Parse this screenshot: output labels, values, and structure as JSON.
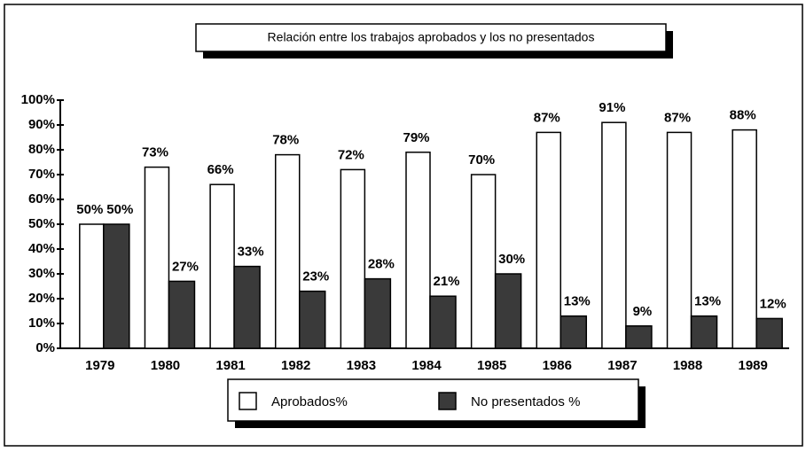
{
  "chart_data": {
    "type": "bar",
    "title": "Relación entre los trabajos aprobados y los no presentados",
    "categories": [
      "1979",
      "1980",
      "1981",
      "1982",
      "1983",
      "1984",
      "1985",
      "1986",
      "1987",
      "1988",
      "1989"
    ],
    "series": [
      {
        "name": "Aprobados%",
        "color": "#ffffff",
        "values": [
          50,
          73,
          66,
          78,
          72,
          79,
          70,
          87,
          91,
          87,
          88
        ],
        "value_labels": [
          "50%",
          "73%",
          "66%",
          "78%",
          "72%",
          "79%",
          "70%",
          "87%",
          "91%",
          "87%",
          "88%"
        ]
      },
      {
        "name": "No presentados %",
        "color": "#3a3a3a",
        "values": [
          50,
          27,
          33,
          23,
          28,
          21,
          30,
          13,
          9,
          13,
          12
        ],
        "value_labels": [
          "50%",
          "27%",
          "33%",
          "23%",
          "28%",
          "21%",
          "30%",
          "13%",
          "9%",
          "13%",
          "12%"
        ]
      }
    ],
    "ylim": [
      0,
      100
    ],
    "yticks": [
      {
        "value": 0,
        "label": "0%"
      },
      {
        "value": 10,
        "label": "10%"
      },
      {
        "value": 20,
        "label": "20%"
      },
      {
        "value": 30,
        "label": "30%"
      },
      {
        "value": 40,
        "label": "40%"
      },
      {
        "value": 50,
        "label": "50%"
      },
      {
        "value": 60,
        "label": "60%"
      },
      {
        "value": 70,
        "label": "70%"
      },
      {
        "value": 80,
        "label": "80%"
      },
      {
        "value": 90,
        "label": "90%"
      },
      {
        "value": 100,
        "label": "100%"
      }
    ],
    "grid": false,
    "legend": "bottom"
  }
}
